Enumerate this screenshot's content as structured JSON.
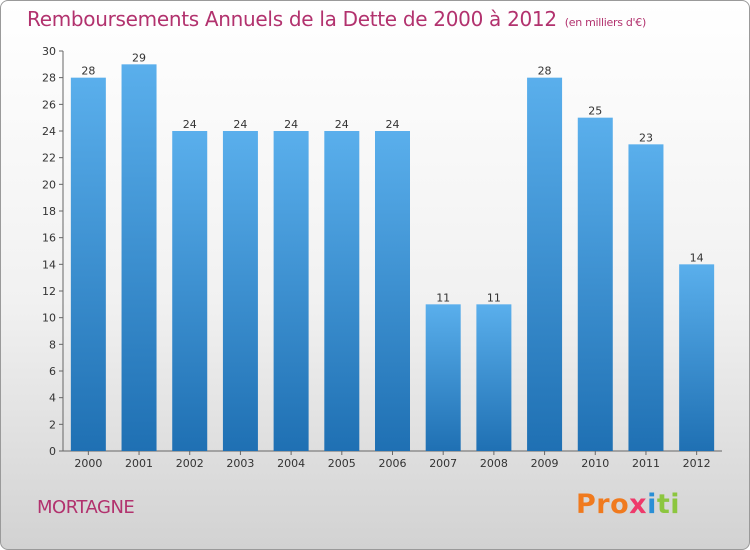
{
  "chart_data": {
    "type": "bar",
    "title": "Remboursements Annuels de la Dette de 2000 à 2012",
    "subtitle": "(en milliers d'€)",
    "categories": [
      "2000",
      "2001",
      "2002",
      "2003",
      "2004",
      "2005",
      "2006",
      "2007",
      "2008",
      "2009",
      "2010",
      "2011",
      "2012"
    ],
    "values": [
      28,
      29,
      24,
      24,
      24,
      24,
      24,
      11,
      11,
      28,
      25,
      23,
      14
    ],
    "ylim": [
      0,
      30
    ],
    "yticks": [
      0,
      2,
      4,
      6,
      8,
      10,
      12,
      14,
      16,
      18,
      20,
      22,
      24,
      26,
      28,
      30
    ],
    "xlabel": "",
    "ylabel": "",
    "grid": false,
    "bar_color": "#3d9ad9"
  },
  "place_name": "MORTAGNE",
  "brand": {
    "p1": "Pro",
    "p2": "x",
    "p3": "i",
    "p4": "ti"
  }
}
